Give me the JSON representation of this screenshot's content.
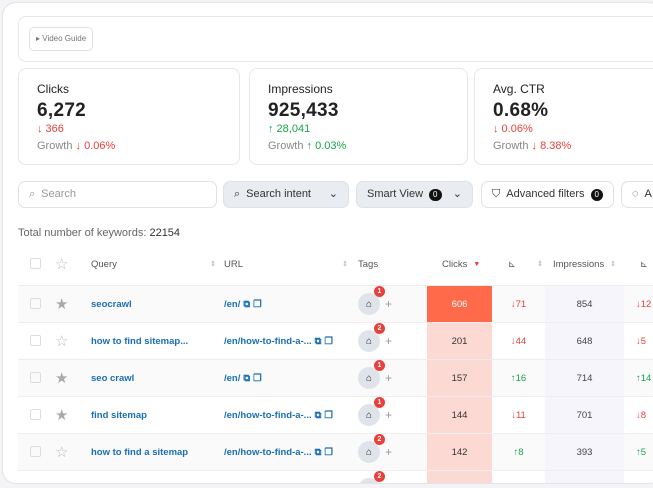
{
  "video_guide": "Video Guide",
  "cards": [
    {
      "title": "Clicks",
      "value": "6,272",
      "delta": "↓ 366",
      "delta_dir": "down",
      "growth_label": "Growth",
      "growth": "↓ 0.06%",
      "growth_dir": "down"
    },
    {
      "title": "Impressions",
      "value": "925,433",
      "delta": "↑ 28,041",
      "delta_dir": "up",
      "growth_label": "Growth",
      "growth": "↑ 0.03%",
      "growth_dir": "up"
    },
    {
      "title": "Avg. CTR",
      "value": "0.68%",
      "delta": "↓ 0.06%",
      "delta_dir": "down",
      "growth_label": "Growth",
      "growth": "↓ 8.38%",
      "growth_dir": "down"
    }
  ],
  "filters": {
    "search_placeholder": "Search",
    "search_intent": "Search intent",
    "smart_view": "Smart View",
    "smart_view_count": "0",
    "advanced": "Advanced filters",
    "advanced_count": "0",
    "extra": "A"
  },
  "total_label": "Total number of keywords:",
  "total_value": "22154",
  "columns": {
    "query": "Query",
    "url": "URL",
    "tags": "Tags",
    "clicks": "Clicks",
    "impressions": "Impressions"
  },
  "colors": {
    "clicks_heat_max": "#ff6b4a",
    "clicks_heat": "#fdd9d3",
    "link": "#1a6fb5",
    "down": "#e8413c",
    "up": "#19a34a"
  },
  "rows": [
    {
      "starred": true,
      "query": "seocrawl",
      "url": "/en/",
      "tags": "1",
      "clicks": "606",
      "clicks_delta": "↓71",
      "clicks_dir": "down",
      "impressions": "854",
      "imp_delta": "↓12",
      "imp_dir": "down"
    },
    {
      "starred": false,
      "query": "how to find sitemap...",
      "url": "/en/how-to-find-a-...",
      "tags": "2",
      "clicks": "201",
      "clicks_delta": "↓44",
      "clicks_dir": "down",
      "impressions": "648",
      "imp_delta": "↓5",
      "imp_dir": "down"
    },
    {
      "starred": true,
      "query": "seo crawl",
      "url": "/en/",
      "tags": "1",
      "clicks": "157",
      "clicks_delta": "↑16",
      "clicks_dir": "up",
      "impressions": "714",
      "imp_delta": "↑14",
      "imp_dir": "up"
    },
    {
      "starred": true,
      "query": "find sitemap",
      "url": "/en/how-to-find-a-...",
      "tags": "1",
      "clicks": "144",
      "clicks_delta": "↓11",
      "clicks_dir": "down",
      "impressions": "701",
      "imp_delta": "↓8",
      "imp_dir": "down"
    },
    {
      "starred": false,
      "query": "how to find a sitemap",
      "url": "/en/how-to-find-a-...",
      "tags": "2",
      "clicks": "142",
      "clicks_delta": "↑8",
      "clicks_dir": "up",
      "impressions": "393",
      "imp_delta": "↑5",
      "imp_dir": "up"
    },
    {
      "starred": false,
      "query": "",
      "url": "",
      "tags": "2",
      "clicks": "",
      "clicks_delta": "",
      "clicks_dir": "up",
      "impressions": "",
      "imp_delta": "",
      "imp_dir": "up"
    }
  ]
}
